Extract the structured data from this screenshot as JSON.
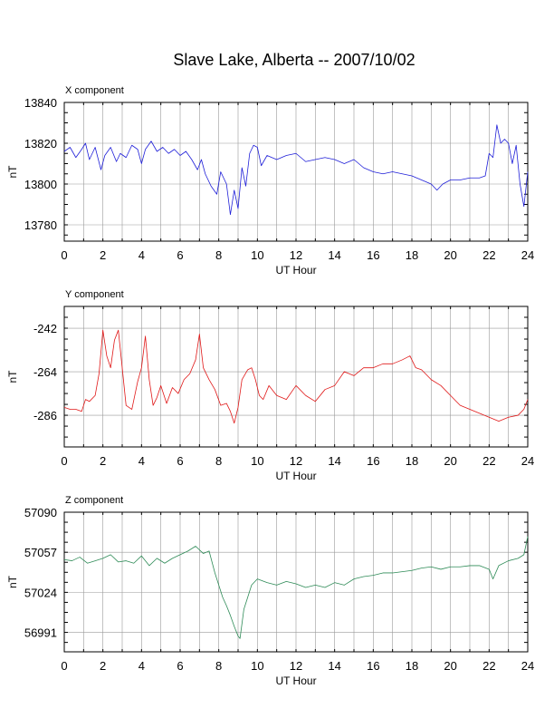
{
  "page": {
    "title": "Slave Lake, Alberta -- 2007/10/02"
  },
  "chart_data": [
    {
      "type": "line",
      "title": "X component",
      "xlabel": "UT Hour",
      "ylabel": "nT",
      "xlim": [
        0,
        24
      ],
      "ylim": [
        13772,
        13840
      ],
      "x_ticks": [
        0,
        2,
        4,
        6,
        8,
        10,
        12,
        14,
        16,
        18,
        20,
        22,
        24
      ],
      "y_ticks": [
        13780,
        13800,
        13820,
        13840
      ],
      "grid": true,
      "color": "#1f1fd8",
      "series": [
        {
          "x": [
            0,
            0.3,
            0.6,
            0.9,
            1.1,
            1.3,
            1.6,
            1.9,
            2.1,
            2.4,
            2.7,
            2.9,
            3.2,
            3.5,
            3.8,
            4.0,
            4.2,
            4.5,
            4.8,
            5.1,
            5.4,
            5.7,
            6.0,
            6.3,
            6.6,
            6.9,
            7.1,
            7.3,
            7.6,
            7.9,
            8.1,
            8.4,
            8.6,
            8.8,
            9.0,
            9.2,
            9.4,
            9.6,
            9.8,
            10.0,
            10.2,
            10.5,
            11.0,
            11.5,
            12.0,
            12.5,
            13.0,
            13.5,
            14.0,
            14.5,
            15.0,
            15.5,
            16.0,
            16.5,
            17.0,
            17.5,
            18.0,
            18.5,
            19.0,
            19.3,
            19.6,
            20.0,
            20.5,
            21.0,
            21.5,
            21.8,
            22.0,
            22.2,
            22.4,
            22.6,
            22.8,
            23.0,
            23.2,
            23.4,
            23.6,
            23.8,
            24.0
          ],
          "y": [
            13816,
            13818,
            13813,
            13817,
            13820,
            13812,
            13818,
            13807,
            13814,
            13818,
            13811,
            13815,
            13813,
            13819,
            13817,
            13810,
            13817,
            13821,
            13816,
            13818,
            13815,
            13817,
            13814,
            13816,
            13812,
            13807,
            13812,
            13805,
            13799,
            13795,
            13806,
            13800,
            13785,
            13797,
            13788,
            13808,
            13799,
            13815,
            13819,
            13818,
            13809,
            13814,
            13812,
            13814,
            13815,
            13811,
            13812,
            13813,
            13812,
            13810,
            13812,
            13808,
            13806,
            13805,
            13806,
            13805,
            13804,
            13802,
            13800,
            13797,
            13800,
            13802,
            13802,
            13803,
            13803,
            13804,
            13815,
            13813,
            13829,
            13820,
            13822,
            13820,
            13810,
            13819,
            13800,
            13789,
            13806
          ]
        }
      ]
    },
    {
      "type": "line",
      "title": "Y component",
      "xlabel": "UT Hour",
      "ylabel": "nT",
      "xlim": [
        0,
        24
      ],
      "ylim": [
        -302,
        -231
      ],
      "x_ticks": [
        0,
        2,
        4,
        6,
        8,
        10,
        12,
        14,
        16,
        18,
        20,
        22,
        24
      ],
      "y_ticks": [
        -242,
        -264,
        -286
      ],
      "y_tick_labels": [
        "-242",
        "-264",
        "-286"
      ],
      "grid": true,
      "color": "#e01818",
      "series": [
        {
          "x": [
            0,
            0.3,
            0.6,
            0.9,
            1.1,
            1.3,
            1.6,
            1.8,
            2.0,
            2.2,
            2.4,
            2.6,
            2.8,
            3.0,
            3.2,
            3.5,
            3.8,
            4.0,
            4.2,
            4.4,
            4.6,
            4.8,
            5.0,
            5.3,
            5.6,
            5.9,
            6.2,
            6.5,
            6.8,
            7.0,
            7.2,
            7.5,
            7.8,
            8.1,
            8.4,
            8.6,
            8.8,
            9.0,
            9.2,
            9.5,
            9.7,
            9.9,
            10.1,
            10.3,
            10.6,
            11.0,
            11.5,
            12.0,
            12.5,
            13.0,
            13.5,
            14.0,
            14.5,
            15.0,
            15.5,
            16.0,
            16.5,
            17.0,
            17.5,
            17.9,
            18.2,
            18.5,
            19.0,
            19.5,
            20.0,
            20.5,
            21.0,
            21.5,
            22.0,
            22.5,
            23.0,
            23.5,
            23.8,
            24.0
          ],
          "y": [
            -282,
            -283,
            -283,
            -284,
            -278,
            -279,
            -276,
            -265,
            -243,
            -256,
            -262,
            -248,
            -243,
            -262,
            -281,
            -283,
            -269,
            -262,
            -246,
            -268,
            -281,
            -277,
            -271,
            -280,
            -272,
            -275,
            -268,
            -265,
            -258,
            -245,
            -262,
            -268,
            -273,
            -281,
            -280,
            -284,
            -290,
            -282,
            -268,
            -263,
            -262,
            -268,
            -276,
            -278,
            -271,
            -276,
            -278,
            -271,
            -276,
            -279,
            -273,
            -271,
            -264,
            -266,
            -262,
            -262,
            -260,
            -260,
            -258,
            -256,
            -262,
            -263,
            -268,
            -271,
            -276,
            -281,
            -283,
            -285,
            -287,
            -289,
            -287,
            -286,
            -283,
            -278
          ]
        }
      ]
    },
    {
      "type": "line",
      "title": "Z component",
      "xlabel": "UT Hour",
      "ylabel": "nT",
      "xlim": [
        0,
        24
      ],
      "ylim": [
        56975,
        57090
      ],
      "x_ticks": [
        0,
        2,
        4,
        6,
        8,
        10,
        12,
        14,
        16,
        18,
        20,
        22,
        24
      ],
      "y_ticks": [
        56991,
        57024,
        57057,
        57090
      ],
      "grid": true,
      "color": "#2e8b57",
      "series": [
        {
          "x": [
            0,
            0.4,
            0.8,
            1.2,
            1.6,
            2.0,
            2.4,
            2.8,
            3.2,
            3.6,
            4.0,
            4.4,
            4.8,
            5.2,
            5.6,
            6.0,
            6.4,
            6.8,
            7.2,
            7.5,
            7.8,
            8.0,
            8.2,
            8.4,
            8.6,
            8.8,
            9.0,
            9.1,
            9.3,
            9.5,
            9.7,
            10.0,
            10.5,
            11.0,
            11.5,
            12.0,
            12.5,
            13.0,
            13.5,
            14.0,
            14.5,
            15.0,
            15.5,
            16.0,
            16.5,
            17.0,
            17.5,
            18.0,
            18.5,
            19.0,
            19.5,
            20.0,
            20.5,
            21.0,
            21.5,
            22.0,
            22.2,
            22.5,
            23.0,
            23.5,
            23.8,
            24.0
          ],
          "y": [
            57051,
            57050,
            57053,
            57048,
            57050,
            57052,
            57055,
            57049,
            57050,
            57048,
            57054,
            57046,
            57052,
            57048,
            57052,
            57055,
            57058,
            57062,
            57056,
            57058,
            57040,
            57030,
            57020,
            57013,
            57005,
            56996,
            56988,
            56986,
            57010,
            57020,
            57030,
            57035,
            57032,
            57030,
            57033,
            57031,
            57028,
            57030,
            57028,
            57032,
            57030,
            57035,
            57037,
            57038,
            57040,
            57040,
            57041,
            57042,
            57044,
            57045,
            57043,
            57045,
            57045,
            57046,
            57046,
            57043,
            57035,
            57046,
            57050,
            57052,
            57055,
            57070
          ]
        }
      ]
    }
  ]
}
